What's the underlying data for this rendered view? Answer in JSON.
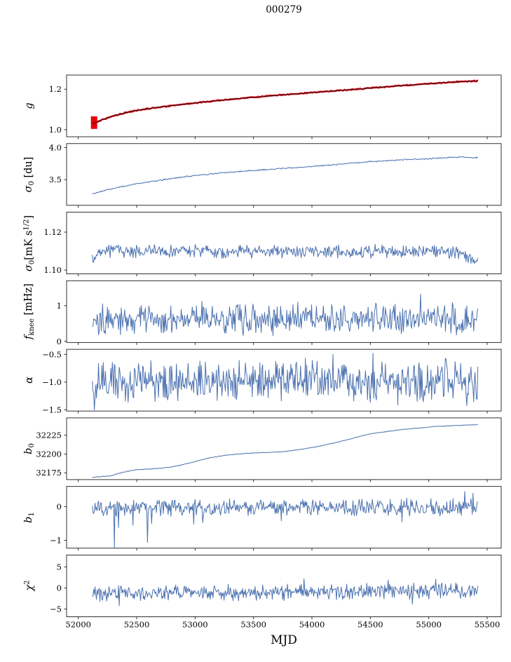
{
  "title": "000279",
  "xlabel": "MJD",
  "colors": {
    "line_blue": "#4c72b0",
    "fit_black": "#1a1a1a",
    "data_red": "#e8000b",
    "frame": "#000000",
    "text": "#000000",
    "background": "#ffffff"
  },
  "axis": {
    "xlim": [
      51900,
      55620
    ],
    "xticks": [
      52000,
      52500,
      53000,
      53500,
      54000,
      54500,
      55000,
      55500
    ],
    "xtick_labels": [
      "52000",
      "52500",
      "53000",
      "53500",
      "54000",
      "54500",
      "55000",
      "55500"
    ],
    "x_data_range": [
      52120,
      55420
    ],
    "n_points": 560
  },
  "chart_data": [
    {
      "id": "g",
      "type": "line",
      "ylabel": "g",
      "ylabel_segments": [
        {
          "t": "g",
          "it": true
        }
      ],
      "ylim": [
        0.965,
        1.27
      ],
      "yticks": [
        1.0,
        1.2
      ],
      "ytick_labels": [
        "1.0",
        "1.2"
      ],
      "series": [
        {
          "name": "g-data",
          "color": "#e8000b",
          "width": 2.4,
          "noise": 0.0035,
          "start_blob": {
            "x0": 52108,
            "x1": 52162,
            "lo": 1.004,
            "hi": 1.066
          },
          "trend": [
            [
              52120,
              1.028
            ],
            [
              52200,
              1.048
            ],
            [
              52300,
              1.068
            ],
            [
              52400,
              1.083
            ],
            [
              52500,
              1.095
            ],
            [
              52650,
              1.108
            ],
            [
              52800,
              1.119
            ],
            [
              53000,
              1.132
            ],
            [
              53200,
              1.144
            ],
            [
              53400,
              1.155
            ],
            [
              53600,
              1.165
            ],
            [
              53800,
              1.174
            ],
            [
              54000,
              1.183
            ],
            [
              54200,
              1.192
            ],
            [
              54400,
              1.201
            ],
            [
              54600,
              1.21
            ],
            [
              54800,
              1.219
            ],
            [
              55000,
              1.227
            ],
            [
              55150,
              1.233
            ],
            [
              55300,
              1.238
            ],
            [
              55420,
              1.241
            ]
          ]
        },
        {
          "name": "g-fit",
          "color": "#1a1a1a",
          "width": 1.0,
          "noise": 0.0008,
          "trend": [
            [
              52120,
              1.028
            ],
            [
              52200,
              1.048
            ],
            [
              52300,
              1.068
            ],
            [
              52400,
              1.083
            ],
            [
              52500,
              1.095
            ],
            [
              52650,
              1.108
            ],
            [
              52800,
              1.119
            ],
            [
              53000,
              1.132
            ],
            [
              53200,
              1.144
            ],
            [
              53400,
              1.155
            ],
            [
              53600,
              1.165
            ],
            [
              53800,
              1.174
            ],
            [
              54000,
              1.183
            ],
            [
              54200,
              1.192
            ],
            [
              54400,
              1.201
            ],
            [
              54600,
              1.21
            ],
            [
              54800,
              1.219
            ],
            [
              55000,
              1.227
            ],
            [
              55150,
              1.233
            ],
            [
              55300,
              1.238
            ],
            [
              55420,
              1.241
            ]
          ]
        }
      ]
    },
    {
      "id": "sigma0-du",
      "type": "line",
      "ylabel": "σ0 [du]",
      "ylabel_segments": [
        {
          "t": "σ",
          "it": true
        },
        {
          "t": "0",
          "sub": true
        },
        {
          "t": " [du]"
        }
      ],
      "ylim": [
        3.1,
        4.06
      ],
      "yticks": [
        3.5,
        4.0
      ],
      "ytick_labels": [
        "3.5",
        "4.0"
      ],
      "series": [
        {
          "name": "sigma0-du",
          "color": "#4c72b0",
          "width": 1.0,
          "noise": 0.012,
          "trend": [
            [
              52120,
              3.28
            ],
            [
              52250,
              3.34
            ],
            [
              52400,
              3.4
            ],
            [
              52550,
              3.45
            ],
            [
              52700,
              3.49
            ],
            [
              52850,
              3.53
            ],
            [
              53000,
              3.565
            ],
            [
              53200,
              3.6
            ],
            [
              53400,
              3.63
            ],
            [
              53600,
              3.655
            ],
            [
              53800,
              3.68
            ],
            [
              54000,
              3.705
            ],
            [
              54200,
              3.735
            ],
            [
              54400,
              3.765
            ],
            [
              54600,
              3.79
            ],
            [
              54800,
              3.81
            ],
            [
              55000,
              3.825
            ],
            [
              55150,
              3.84
            ],
            [
              55300,
              3.85
            ],
            [
              55420,
              3.84
            ]
          ]
        }
      ]
    },
    {
      "id": "sigma0-mks",
      "type": "line",
      "ylabel": "σ0[mK s1/2]",
      "ylabel_segments": [
        {
          "t": "σ",
          "it": true
        },
        {
          "t": "0",
          "sub": true
        },
        {
          "t": "[mK s"
        },
        {
          "t": "1/2",
          "sup": true
        },
        {
          "t": "]"
        }
      ],
      "ylim": [
        1.098,
        1.1305
      ],
      "yticks": [
        1.1,
        1.12
      ],
      "ytick_labels": [
        "1.10",
        "1.12"
      ],
      "series": [
        {
          "name": "sigma0-mks",
          "color": "#4c72b0",
          "width": 1.0,
          "noise": 0.004,
          "trend": [
            [
              52120,
              1.1045
            ],
            [
              52180,
              1.1095
            ],
            [
              52300,
              1.1105
            ],
            [
              52450,
              1.1098
            ],
            [
              52700,
              1.1097
            ],
            [
              53000,
              1.11
            ],
            [
              53300,
              1.1097
            ],
            [
              53700,
              1.11
            ],
            [
              54100,
              1.1096
            ],
            [
              54500,
              1.1098
            ],
            [
              54800,
              1.1099
            ],
            [
              55100,
              1.1105
            ],
            [
              55250,
              1.1092
            ],
            [
              55350,
              1.1062
            ],
            [
              55420,
              1.105
            ]
          ]
        }
      ]
    },
    {
      "id": "fknee",
      "type": "line",
      "ylabel": "f_knee [mHz]",
      "ylabel_segments": [
        {
          "t": "f",
          "it": true
        },
        {
          "t": "knee",
          "sub": true
        },
        {
          "t": " [mHz]"
        }
      ],
      "ylim": [
        -0.03,
        1.7
      ],
      "yticks": [
        0,
        1
      ],
      "ytick_labels": [
        "0",
        "1"
      ],
      "series": [
        {
          "name": "fknee",
          "color": "#4c72b0",
          "width": 1.0,
          "noise": 0.5,
          "trend": [
            [
              52120,
              0.6
            ],
            [
              52500,
              0.64
            ],
            [
              53200,
              0.62
            ],
            [
              54000,
              0.63
            ],
            [
              54800,
              0.62
            ],
            [
              55420,
              0.62
            ]
          ],
          "spikes": [
            [
              52210,
              1.05
            ],
            [
              53060,
              1.12
            ],
            [
              54930,
              1.32
            ]
          ]
        }
      ]
    },
    {
      "id": "alpha",
      "type": "line",
      "ylabel": "α",
      "ylabel_segments": [
        {
          "t": "α",
          "it": true
        }
      ],
      "ylim": [
        -1.52,
        -0.41
      ],
      "yticks": [
        -1.5,
        -1.0,
        -0.5
      ],
      "ytick_labels": [
        "−1.5",
        "−1.0",
        "−0.5"
      ],
      "series": [
        {
          "name": "alpha",
          "color": "#4c72b0",
          "width": 1.0,
          "noise": 0.45,
          "trend": [
            [
              52120,
              -1.02
            ],
            [
              53200,
              -1.0
            ],
            [
              54400,
              -0.99
            ],
            [
              55420,
              -1.0
            ]
          ],
          "spikes": [
            [
              52135,
              -1.5
            ],
            [
              54180,
              -0.5
            ],
            [
              54520,
              -0.48
            ]
          ]
        }
      ]
    },
    {
      "id": "b0",
      "type": "line",
      "ylabel": "b0",
      "ylabel_segments": [
        {
          "t": "b",
          "it": true
        },
        {
          "t": "0",
          "sub": true
        }
      ],
      "ylim": [
        32166,
        32248
      ],
      "yticks": [
        32175,
        32200,
        32225
      ],
      "ytick_labels": [
        "32175",
        "32200",
        "32225"
      ],
      "series": [
        {
          "name": "b0",
          "color": "#4c72b0",
          "width": 1.0,
          "noise": 0.5,
          "trend": [
            [
              52120,
              32169
            ],
            [
              52200,
              32170
            ],
            [
              52280,
              32171
            ],
            [
              52340,
              32174
            ],
            [
              52420,
              32177
            ],
            [
              52500,
              32179
            ],
            [
              52600,
              32180
            ],
            [
              52700,
              32181
            ],
            [
              52800,
              32183
            ],
            [
              52900,
              32186
            ],
            [
              53000,
              32190
            ],
            [
              53100,
              32194
            ],
            [
              53200,
              32197
            ],
            [
              53300,
              32199
            ],
            [
              53450,
              32201
            ],
            [
              53600,
              32202
            ],
            [
              53750,
              32203
            ],
            [
              53900,
              32206
            ],
            [
              54050,
              32210
            ],
            [
              54200,
              32215
            ],
            [
              54350,
              32221
            ],
            [
              54500,
              32227
            ],
            [
              54650,
              32230
            ],
            [
              54800,
              32233
            ],
            [
              54950,
              32235
            ],
            [
              55100,
              32237
            ],
            [
              55250,
              32238
            ],
            [
              55420,
              32239
            ]
          ]
        }
      ]
    },
    {
      "id": "b1",
      "type": "line",
      "ylabel": "b1",
      "ylabel_segments": [
        {
          "t": "b",
          "it": true
        },
        {
          "t": "1",
          "sub": true
        }
      ],
      "ylim": [
        -1.23,
        0.6
      ],
      "yticks": [
        -1,
        0
      ],
      "ytick_labels": [
        "−1",
        "0"
      ],
      "series": [
        {
          "name": "b1",
          "color": "#4c72b0",
          "width": 1.0,
          "noise": 0.3,
          "trend": [
            [
              52120,
              -0.05
            ],
            [
              53000,
              -0.03
            ],
            [
              54200,
              -0.02
            ],
            [
              55420,
              0.0
            ]
          ],
          "spikes": [
            [
              52310,
              -1.21
            ],
            [
              52345,
              -0.62
            ],
            [
              52470,
              -0.55
            ],
            [
              52590,
              -1.06
            ],
            [
              52625,
              -0.5
            ],
            [
              52985,
              -0.52
            ],
            [
              53065,
              -0.47
            ],
            [
              53740,
              -0.42
            ],
            [
              54770,
              -0.45
            ],
            [
              55310,
              0.45
            ],
            [
              55380,
              0.4
            ]
          ]
        }
      ]
    },
    {
      "id": "chi2",
      "type": "line",
      "ylabel": "χ2",
      "ylabel_segments": [
        {
          "t": "χ",
          "it": true
        },
        {
          "t": "2",
          "sup": true
        }
      ],
      "ylim": [
        -6.8,
        7.8
      ],
      "yticks": [
        -5,
        0,
        5
      ],
      "ytick_labels": [
        "−5",
        "0",
        "5"
      ],
      "series": [
        {
          "name": "chi2",
          "color": "#4c72b0",
          "width": 1.0,
          "noise": 2.2,
          "trend": [
            [
              52120,
              -1.35
            ],
            [
              52700,
              -1.15
            ],
            [
              53500,
              -1.0
            ],
            [
              54300,
              -0.85
            ],
            [
              55420,
              -0.75
            ]
          ],
          "spikes": [
            [
              52350,
              -4.2
            ],
            [
              53930,
              2.2
            ],
            [
              54650,
              1.9
            ],
            [
              54860,
              -3.8
            ],
            [
              55060,
              2.1
            ]
          ]
        }
      ]
    }
  ]
}
